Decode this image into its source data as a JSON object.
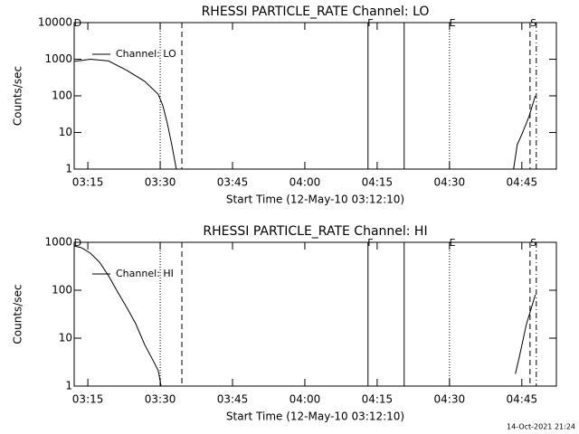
{
  "footer": "14-Oct-2021 21:24",
  "chart_data": [
    {
      "type": "line",
      "title": "RHESSI PARTICLE_RATE Channel: LO",
      "xlabel": "Start Time (12-May-10 03:12:10)",
      "ylabel": "Counts/sec",
      "log_y": true,
      "xlim": [
        192.167,
        292.167
      ],
      "ylim": [
        1,
        10000
      ],
      "xticks": [
        {
          "value": 195,
          "label": "03:15"
        },
        {
          "value": 210,
          "label": "03:30"
        },
        {
          "value": 225,
          "label": "03:45"
        },
        {
          "value": 240,
          "label": "04:00"
        },
        {
          "value": 255,
          "label": "04:15"
        },
        {
          "value": 270,
          "label": "04:30"
        },
        {
          "value": 285,
          "label": "04:45"
        }
      ],
      "yticks": [
        1,
        10,
        100,
        1000,
        10000
      ],
      "legend": "upper left",
      "series": [
        {
          "name": "Channel: LO",
          "color": "#000000",
          "x": [
            192.17,
            195.54,
            199.29,
            203.04,
            206.79,
            209.6,
            210.54,
            211.48,
            212.42,
            213.35,
            null,
            283.3,
            284.05,
            285.17,
            286.48,
            287.8
          ],
          "values": [
            870,
            1000,
            900,
            500,
            250,
            110,
            55,
            18,
            4.6,
            1,
            null,
            1,
            4.6,
            10,
            27,
            100
          ]
        }
      ],
      "vlines": [
        {
          "x": 210,
          "style": "dotted"
        },
        {
          "x": 214.5,
          "style": "dashed"
        },
        {
          "x": 253.1,
          "style": "solid"
        },
        {
          "x": 260.6,
          "style": "solid"
        },
        {
          "x": 270,
          "style": "dotted"
        },
        {
          "x": 286.7,
          "style": "dashed"
        },
        {
          "x": 288,
          "style": "dashdot"
        }
      ],
      "annotations": [
        {
          "text": "D",
          "x": 192.9
        },
        {
          "text": "F",
          "x": 253.6
        },
        {
          "text": "E",
          "x": 270.6
        },
        {
          "text": "S",
          "x": 287.4
        }
      ]
    },
    {
      "type": "line",
      "title": "RHESSI PARTICLE_RATE Channel: HI",
      "xlabel": "Start Time (12-May-10 03:12:10)",
      "ylabel": "Counts/sec",
      "log_y": true,
      "xlim": [
        192.167,
        292.167
      ],
      "ylim": [
        1,
        1000
      ],
      "xticks": [
        {
          "value": 195,
          "label": "03:15"
        },
        {
          "value": 210,
          "label": "03:30"
        },
        {
          "value": 225,
          "label": "03:45"
        },
        {
          "value": 240,
          "label": "04:00"
        },
        {
          "value": 255,
          "label": "04:15"
        },
        {
          "value": 270,
          "label": "04:30"
        },
        {
          "value": 285,
          "label": "04:45"
        }
      ],
      "yticks": [
        1,
        10,
        100,
        1000
      ],
      "legend": "upper left",
      "series": [
        {
          "name": "Channel: HI",
          "color": "#000000",
          "x": [
            192.17,
            193.67,
            195.54,
            197.42,
            199.29,
            201.17,
            203.04,
            204.92,
            206.79,
            208.67,
            209.6,
            210.17,
            null,
            283.67,
            284.6,
            285.92,
            287.8
          ],
          "values": [
            840,
            770,
            590,
            385,
            200,
            92,
            44,
            20,
            7.3,
            3.2,
            2.1,
            1,
            null,
            1.8,
            4.6,
            19,
            80
          ]
        }
      ],
      "vlines": [
        {
          "x": 210,
          "style": "dotted"
        },
        {
          "x": 214.5,
          "style": "dashed"
        },
        {
          "x": 253.1,
          "style": "solid"
        },
        {
          "x": 260.6,
          "style": "solid"
        },
        {
          "x": 270,
          "style": "dotted"
        },
        {
          "x": 286.7,
          "style": "dashed"
        },
        {
          "x": 288,
          "style": "dashdot"
        }
      ],
      "annotations": [
        {
          "text": "D",
          "x": 192.9
        },
        {
          "text": "F",
          "x": 253.6
        },
        {
          "text": "E",
          "x": 270.6
        },
        {
          "text": "S",
          "x": 287.4
        }
      ]
    }
  ]
}
